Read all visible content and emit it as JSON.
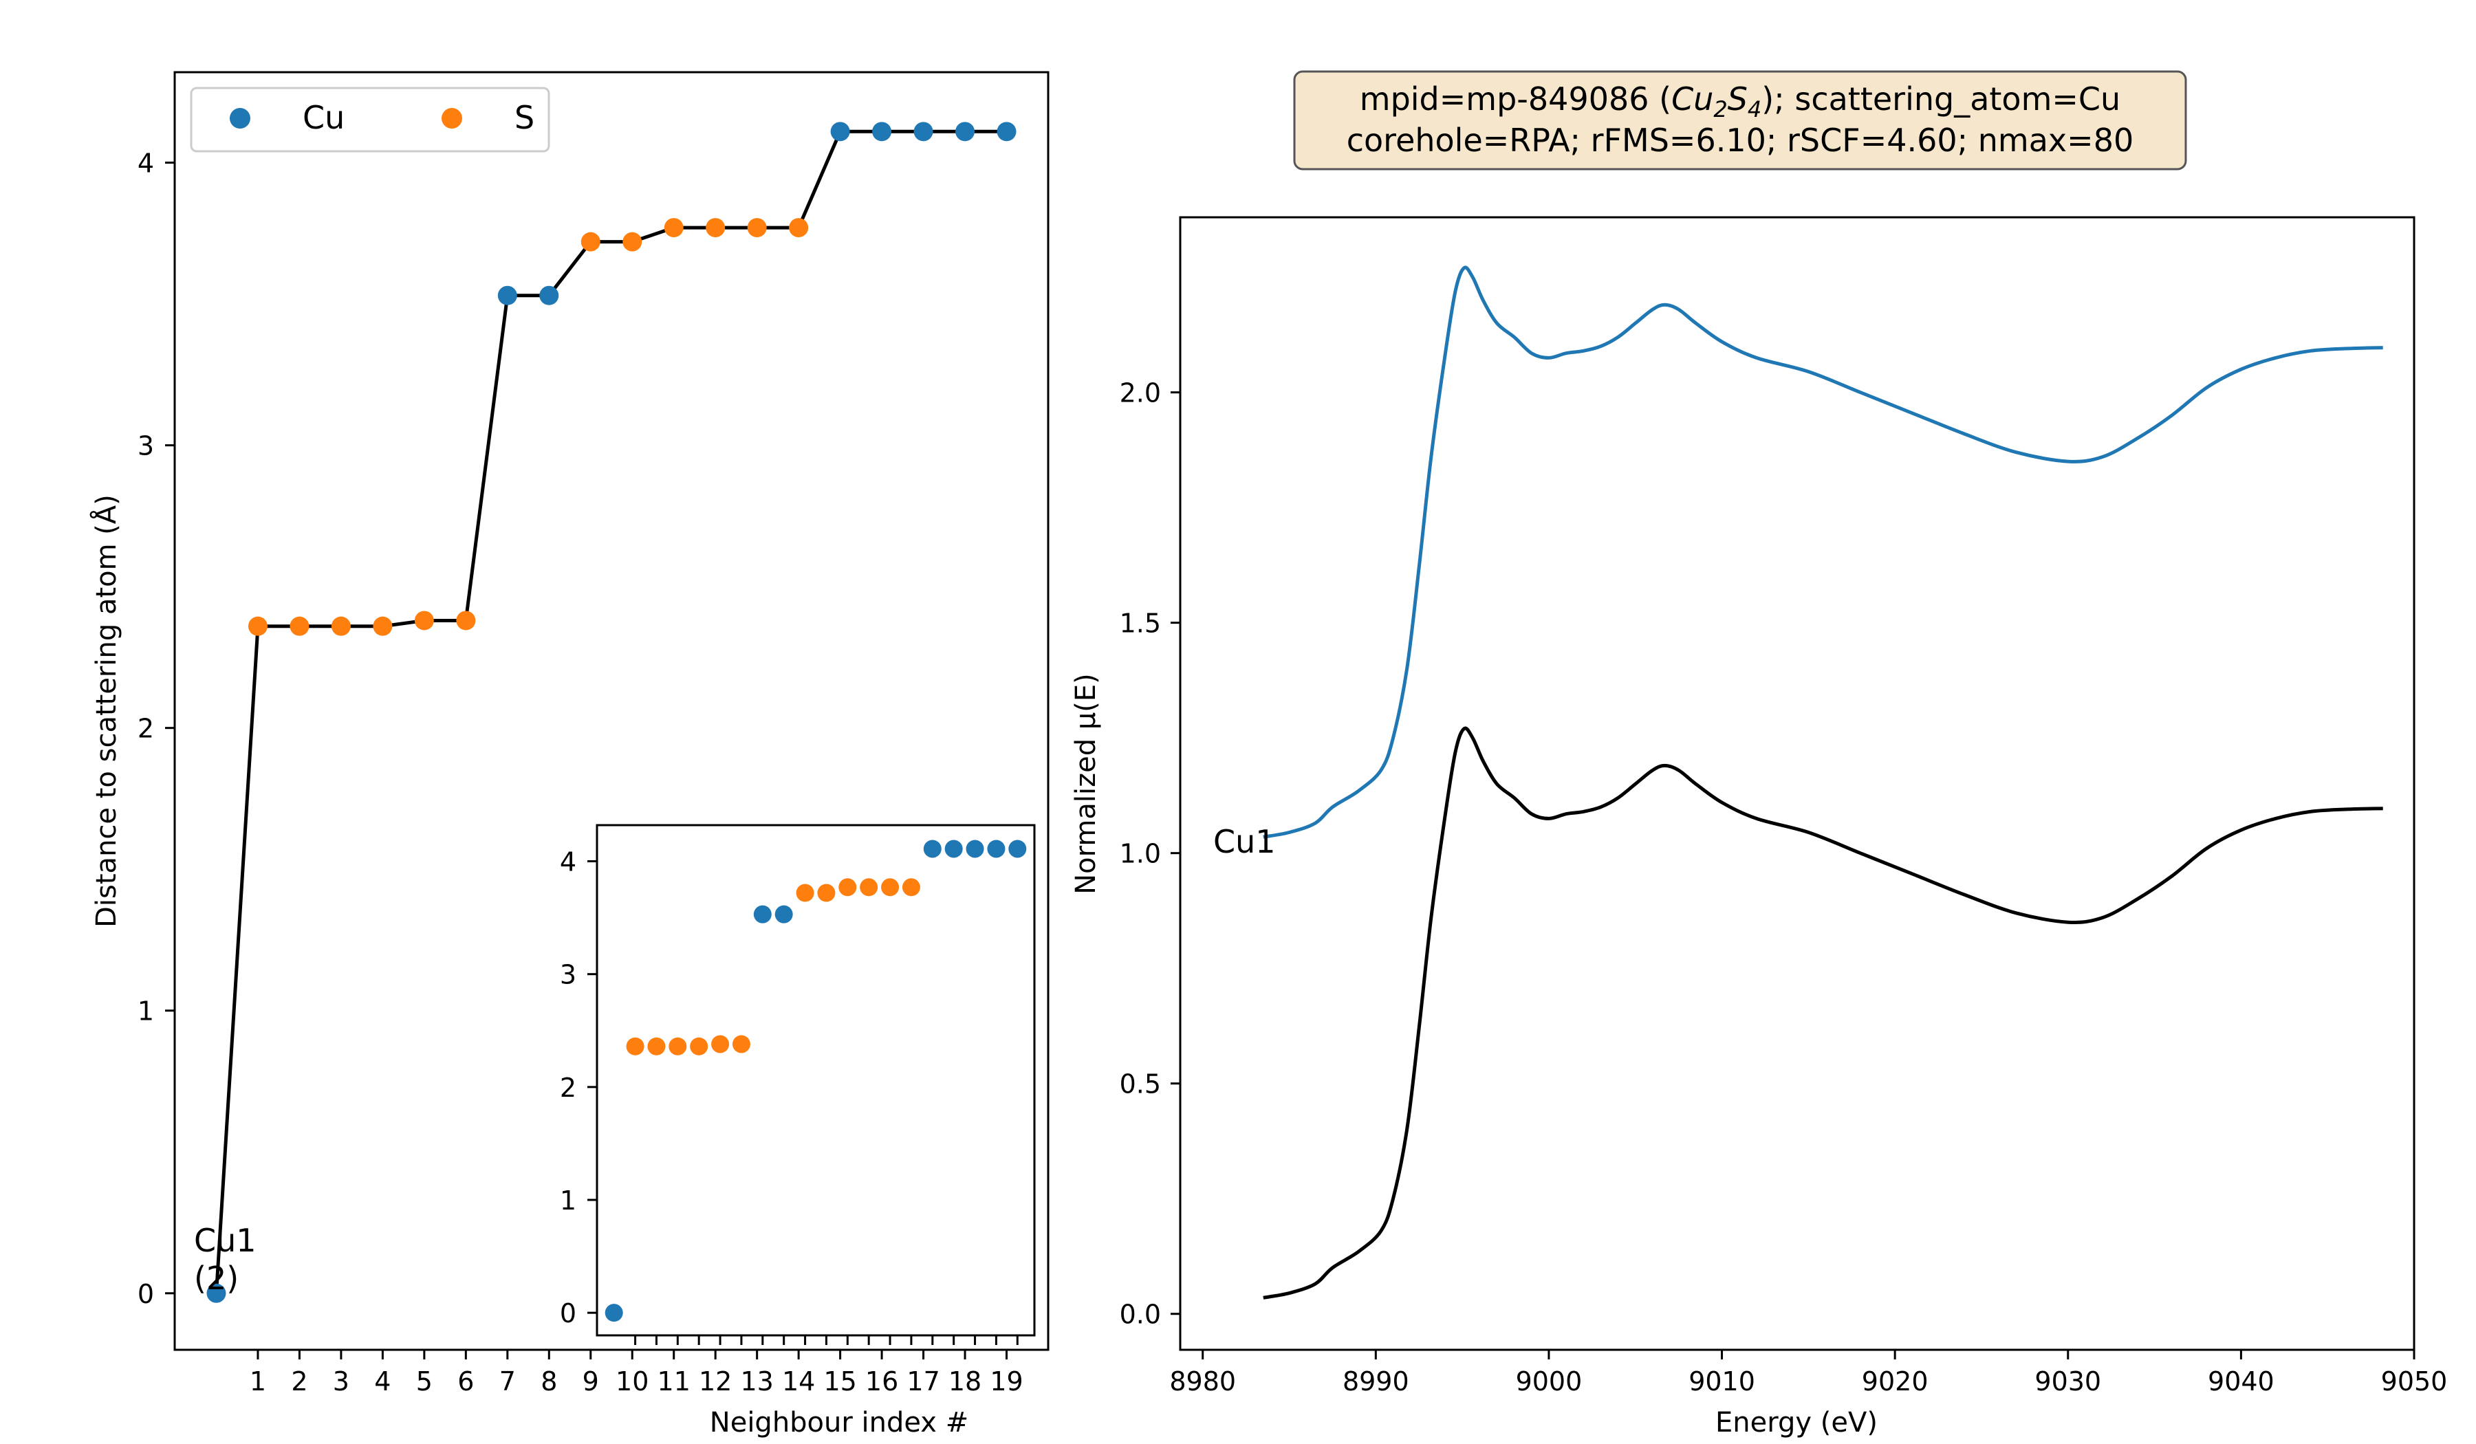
{
  "figure": {
    "info_box": {
      "line1_prefix": "mpid=mp-849086 (",
      "formula_cu": "Cu",
      "formula_cu_sub": "2",
      "formula_s": "S",
      "formula_s_sub": "4",
      "line1_suffix": "); scattering_atom=Cu",
      "line2": "corehole=RPA; rFMS=6.10; rSCF=4.60; nmax=80"
    }
  },
  "chart_data": [
    {
      "type": "line",
      "panel": "neighbours",
      "xlabel": "Neighbour index #",
      "ylabel": "Distance to scattering atom (Å)",
      "xticks": [
        1,
        2,
        3,
        4,
        5,
        6,
        7,
        8,
        9,
        10,
        11,
        12,
        13,
        14,
        15,
        16,
        17,
        18,
        19
      ],
      "xtick_labels": [
        "1",
        "2",
        "3",
        "4",
        "5",
        "6",
        "7",
        "8",
        "9",
        "10",
        "11",
        "12",
        "13",
        "14",
        "15",
        "16",
        "17",
        "18",
        "19"
      ],
      "yticks": [
        0,
        1,
        2,
        3,
        4
      ],
      "ytick_labels": [
        "0",
        "1",
        "2",
        "3",
        "4"
      ],
      "xlim": [
        -1.0,
        20.0
      ],
      "ylim": [
        -0.2,
        4.32
      ],
      "legend": {
        "position": "top-left",
        "entries": [
          {
            "name": "Cu",
            "color": "#1f77b4"
          },
          {
            "name": "S",
            "color": "#ff7f0e"
          }
        ]
      },
      "site_annotation": {
        "line1": "Cu1",
        "line2": "(2)"
      },
      "points": [
        {
          "x": 0,
          "y": 0.0,
          "el": "Cu"
        },
        {
          "x": 1,
          "y": 2.36,
          "el": "S"
        },
        {
          "x": 2,
          "y": 2.36,
          "el": "S"
        },
        {
          "x": 3,
          "y": 2.36,
          "el": "S"
        },
        {
          "x": 4,
          "y": 2.36,
          "el": "S"
        },
        {
          "x": 5,
          "y": 2.38,
          "el": "S"
        },
        {
          "x": 6,
          "y": 2.38,
          "el": "S"
        },
        {
          "x": 7,
          "y": 3.53,
          "el": "Cu"
        },
        {
          "x": 8,
          "y": 3.53,
          "el": "Cu"
        },
        {
          "x": 9,
          "y": 3.72,
          "el": "S"
        },
        {
          "x": 10,
          "y": 3.72,
          "el": "S"
        },
        {
          "x": 11,
          "y": 3.77,
          "el": "S"
        },
        {
          "x": 12,
          "y": 3.77,
          "el": "S"
        },
        {
          "x": 13,
          "y": 3.77,
          "el": "S"
        },
        {
          "x": 14,
          "y": 3.77,
          "el": "S"
        },
        {
          "x": 15,
          "y": 4.11,
          "el": "Cu"
        },
        {
          "x": 16,
          "y": 4.11,
          "el": "Cu"
        },
        {
          "x": 17,
          "y": 4.11,
          "el": "Cu"
        },
        {
          "x": 18,
          "y": 4.11,
          "el": "Cu"
        },
        {
          "x": 19,
          "y": 4.11,
          "el": "Cu"
        }
      ],
      "colors": {
        "Cu": "#1f77b4",
        "S": "#ff7f0e",
        "line": "#000000"
      }
    },
    {
      "type": "scatter",
      "panel": "inset",
      "yticks": [
        0,
        1,
        2,
        3,
        4
      ],
      "ytick_labels": [
        "0",
        "1",
        "2",
        "3",
        "4"
      ],
      "xlim": [
        -0.8,
        19.8
      ],
      "ylim": [
        -0.2,
        4.32
      ]
    },
    {
      "type": "line",
      "panel": "xanes",
      "xlabel": "Energy (eV)",
      "ylabel": "Normalized μ(E)",
      "xticks": [
        8980,
        8990,
        9000,
        9010,
        9020,
        9030,
        9040,
        9050
      ],
      "xtick_labels": [
        "8980",
        "8990",
        "9000",
        "9010",
        "9020",
        "9030",
        "9040",
        "9050"
      ],
      "yticks": [
        0.0,
        0.5,
        1.0,
        1.5,
        2.0
      ],
      "ytick_labels": [
        "0.0",
        "0.5",
        "1.0",
        "1.5",
        "2.0"
      ],
      "xlim": [
        8978.7,
        9050.0
      ],
      "ylim": [
        -0.078,
        2.38
      ],
      "series": [
        {
          "name": "Cu1",
          "color": "#1f77b4",
          "x": [
            8983.5,
            8985,
            8986.5,
            8987.5,
            8989,
            8990.3,
            8991,
            8991.8,
            8992.5,
            8993.2,
            8994,
            8994.6,
            8995.1,
            8995.6,
            8996.2,
            8997,
            8998,
            8999,
            9000,
            9001,
            9002,
            9003,
            9004,
            9005,
            9006,
            9006.7,
            9007.5,
            9008.5,
            9010,
            9012,
            9015,
            9018,
            9021,
            9024,
            9027,
            9030,
            9032,
            9034,
            9036,
            9038,
            9040,
            9042,
            9044,
            9046,
            9048.2
          ],
          "y": [
            1.035,
            1.045,
            1.065,
            1.1,
            1.135,
            1.18,
            1.25,
            1.4,
            1.62,
            1.86,
            2.08,
            2.22,
            2.27,
            2.25,
            2.2,
            2.15,
            2.12,
            2.085,
            2.075,
            2.085,
            2.09,
            2.1,
            2.12,
            2.15,
            2.18,
            2.19,
            2.18,
            2.15,
            2.11,
            2.075,
            2.045,
            2.0,
            1.955,
            1.91,
            1.87,
            1.85,
            1.86,
            1.9,
            1.95,
            2.01,
            2.05,
            2.075,
            2.09,
            2.095,
            2.097
          ]
        },
        {
          "name": "Cu1",
          "color": "#000000",
          "x": [
            8983.5,
            8985,
            8986.5,
            8987.5,
            8989,
            8990.3,
            8991,
            8991.8,
            8992.5,
            8993.2,
            8994,
            8994.6,
            8995.1,
            8995.6,
            8996.2,
            8997,
            8998,
            8999,
            9000,
            9001,
            9002,
            9003,
            9004,
            9005,
            9006,
            9006.7,
            9007.5,
            9008.5,
            9010,
            9012,
            9015,
            9018,
            9021,
            9024,
            9027,
            9030,
            9032,
            9034,
            9036,
            9038,
            9040,
            9042,
            9044,
            9046,
            9048.2
          ],
          "y": [
            0.035,
            0.045,
            0.065,
            0.1,
            0.135,
            0.18,
            0.25,
            0.4,
            0.62,
            0.86,
            1.08,
            1.22,
            1.27,
            1.25,
            1.2,
            1.15,
            1.12,
            1.085,
            1.075,
            1.085,
            1.09,
            1.1,
            1.12,
            1.15,
            1.18,
            1.19,
            1.18,
            1.15,
            1.11,
            1.075,
            1.045,
            1.0,
            0.955,
            0.91,
            0.87,
            0.85,
            0.86,
            0.9,
            0.95,
            1.01,
            1.05,
            1.075,
            1.09,
            1.095,
            1.097
          ]
        }
      ],
      "series_label": "Cu1"
    }
  ]
}
